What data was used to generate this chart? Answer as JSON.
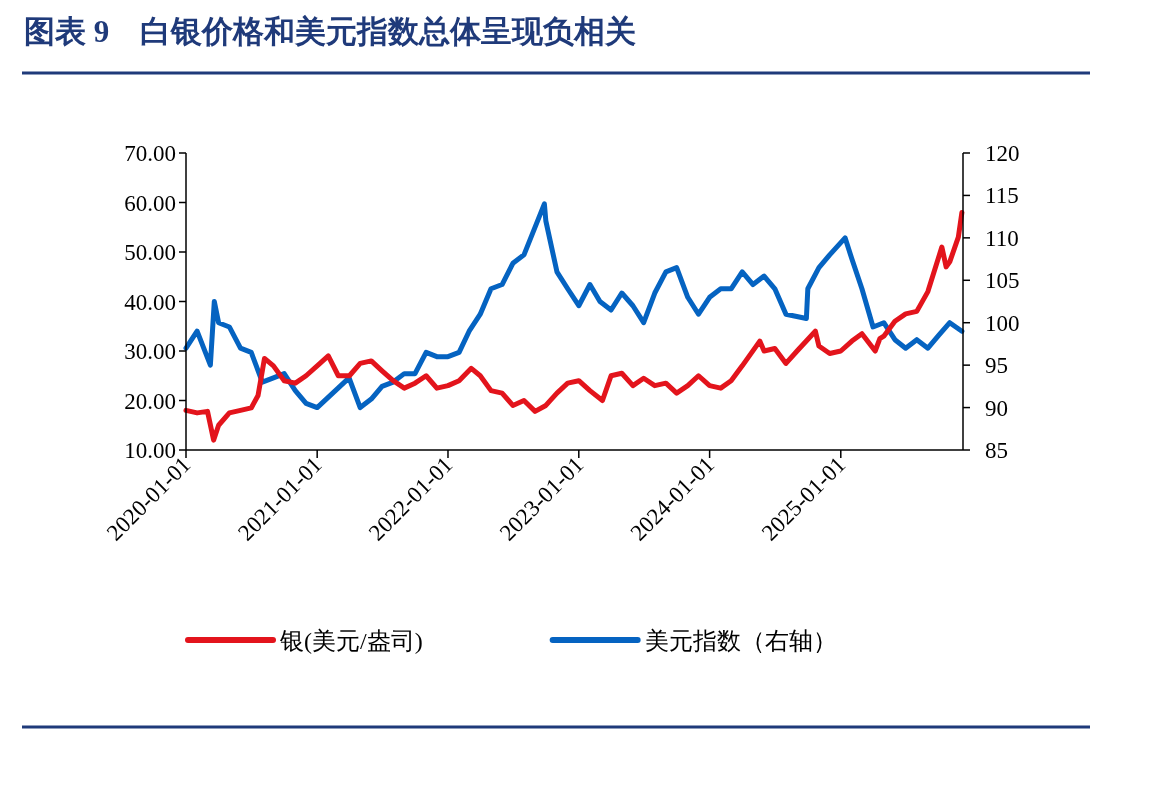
{
  "chart_data": {
    "type": "line",
    "title": "图表 9　白银价格和美元指数总体呈现负相关",
    "xlim": [
      "2020-01-01",
      "2025-12-08"
    ],
    "xticks": [
      "2020-01-01",
      "2021-01-01",
      "2022-01-01",
      "2023-01-01",
      "2024-01-01",
      "2025-01-01"
    ],
    "ylim": [
      10,
      70
    ],
    "yticks": [
      {
        "value": 10,
        "label": "10.00"
      },
      {
        "value": 20,
        "label": "20.00"
      },
      {
        "value": 30,
        "label": "30.00"
      },
      {
        "value": 40,
        "label": "40.00"
      },
      {
        "value": 50,
        "label": "50.00"
      },
      {
        "value": 60,
        "label": "60.00"
      },
      {
        "value": 70,
        "label": "70.00"
      }
    ],
    "y2lim": [
      85,
      120
    ],
    "y2ticks": [
      85,
      90,
      95,
      100,
      105,
      110,
      115,
      120
    ],
    "legend": "bottom",
    "series": [
      {
        "name": "银(美元/盎司)",
        "color": "#e3141c",
        "x": [
          "2020-01-01",
          "2020-02-01",
          "2020-03-01",
          "2020-03-18",
          "2020-04-01",
          "2020-05-01",
          "2020-06-01",
          "2020-07-01",
          "2020-07-20",
          "2020-08-07",
          "2020-09-01",
          "2020-10-01",
          "2020-11-01",
          "2020-12-01",
          "2021-01-01",
          "2021-02-01",
          "2021-03-01",
          "2021-04-01",
          "2021-05-01",
          "2021-06-01",
          "2021-07-01",
          "2021-08-01",
          "2021-09-01",
          "2021-10-01",
          "2021-11-01",
          "2021-12-01",
          "2022-01-01",
          "2022-02-01",
          "2022-03-07",
          "2022-04-01",
          "2022-05-01",
          "2022-06-01",
          "2022-07-01",
          "2022-08-01",
          "2022-09-01",
          "2022-10-01",
          "2022-11-01",
          "2022-12-01",
          "2023-01-01",
          "2023-02-01",
          "2023-03-08",
          "2023-04-01",
          "2023-05-01",
          "2023-06-01",
          "2023-07-01",
          "2023-08-01",
          "2023-09-01",
          "2023-10-01",
          "2023-11-01",
          "2023-12-01",
          "2024-01-01",
          "2024-02-01",
          "2024-03-01",
          "2024-04-01",
          "2024-05-20",
          "2024-06-01",
          "2024-07-01",
          "2024-08-01",
          "2024-09-01",
          "2024-10-22",
          "2024-11-01",
          "2024-12-01",
          "2025-01-01",
          "2025-02-01",
          "2025-03-01",
          "2025-04-07",
          "2025-04-20",
          "2025-05-01",
          "2025-06-01",
          "2025-07-01",
          "2025-08-01",
          "2025-09-01",
          "2025-10-10",
          "2025-10-22",
          "2025-11-01",
          "2025-11-25",
          "2025-12-05"
        ],
        "values": [
          18,
          17.5,
          17.8,
          12,
          15,
          17.5,
          18,
          18.5,
          21,
          28.5,
          27,
          24,
          23.5,
          25,
          27,
          29,
          25,
          25,
          27.5,
          28,
          26,
          24,
          22.5,
          23.5,
          25,
          22.5,
          23,
          24,
          26.5,
          25,
          22,
          21.5,
          19,
          20,
          17.8,
          19,
          21.5,
          23.5,
          24,
          22,
          20,
          25,
          25.5,
          23,
          24.5,
          23,
          23.5,
          21.5,
          23,
          25,
          23,
          22.5,
          24,
          27,
          32,
          30,
          30.5,
          27.5,
          30,
          34,
          31,
          29.5,
          30,
          32,
          33.5,
          30,
          32.5,
          33,
          36,
          37.5,
          38,
          42,
          51,
          47,
          48,
          53,
          58
        ]
      },
      {
        "name": "美元指数（右轴）",
        "color": "#0563c1",
        "axis": "y2",
        "x": [
          "2020-01-01",
          "2020-02-01",
          "2020-03-09",
          "2020-03-20",
          "2020-04-01",
          "2020-05-01",
          "2020-06-01",
          "2020-07-01",
          "2020-08-01",
          "2020-09-01",
          "2020-10-01",
          "2020-11-01",
          "2020-12-01",
          "2021-01-01",
          "2021-03-31",
          "2021-05-01",
          "2021-06-01",
          "2021-07-01",
          "2021-08-01",
          "2021-09-01",
          "2021-10-01",
          "2021-11-01",
          "2021-12-01",
          "2022-01-01",
          "2022-02-01",
          "2022-03-01",
          "2022-04-01",
          "2022-05-01",
          "2022-06-01",
          "2022-07-01",
          "2022-08-01",
          "2022-09-27",
          "2022-10-01",
          "2022-11-01",
          "2022-12-01",
          "2023-01-01",
          "2023-02-01",
          "2023-03-01",
          "2023-04-01",
          "2023-05-01",
          "2023-06-01",
          "2023-07-01",
          "2023-08-01",
          "2023-09-01",
          "2023-10-01",
          "2023-11-01",
          "2023-12-01",
          "2024-01-01",
          "2024-02-01",
          "2024-03-01",
          "2024-04-01",
          "2024-05-01",
          "2024-06-01",
          "2024-07-01",
          "2024-08-01",
          "2024-09-27",
          "2024-10-01",
          "2024-11-01",
          "2024-12-01",
          "2025-01-13",
          "2025-02-01",
          "2025-03-01",
          "2025-04-01",
          "2025-05-01",
          "2025-06-01",
          "2025-07-01",
          "2025-08-01",
          "2025-09-01",
          "2025-10-01",
          "2025-11-01",
          "2025-12-05"
        ],
        "values": [
          97,
          99,
          95,
          102.5,
          100,
          99.5,
          97,
          96.5,
          93,
          93.5,
          94,
          92,
          90.5,
          90,
          93.5,
          90,
          91,
          92.5,
          93,
          94,
          94,
          96.5,
          96,
          96,
          96.5,
          99,
          101,
          104,
          104.5,
          107,
          108,
          114,
          112,
          106,
          104,
          102,
          104.5,
          102.5,
          101.5,
          103.5,
          102,
          100,
          103.5,
          106,
          106.5,
          103,
          101,
          103,
          104,
          104,
          106,
          104.5,
          105.5,
          104,
          101,
          100.5,
          104,
          106.5,
          108,
          110,
          107.5,
          104,
          99.5,
          100,
          98,
          97,
          98,
          97,
          98.5,
          100,
          99
        ]
      }
    ]
  }
}
